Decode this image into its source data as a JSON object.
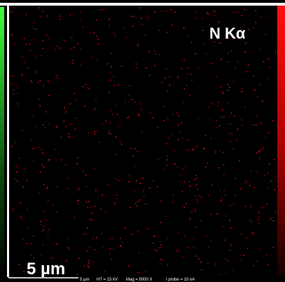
{
  "map": {
    "element_label": "N Kα",
    "scale_bar_label": "5 µm",
    "info_bar": {
      "scale": "5 µm",
      "voltage": "HT = 15 kV",
      "magnification": "Mag = 5000 X",
      "probe": "I probe = 10 nA"
    }
  }
}
